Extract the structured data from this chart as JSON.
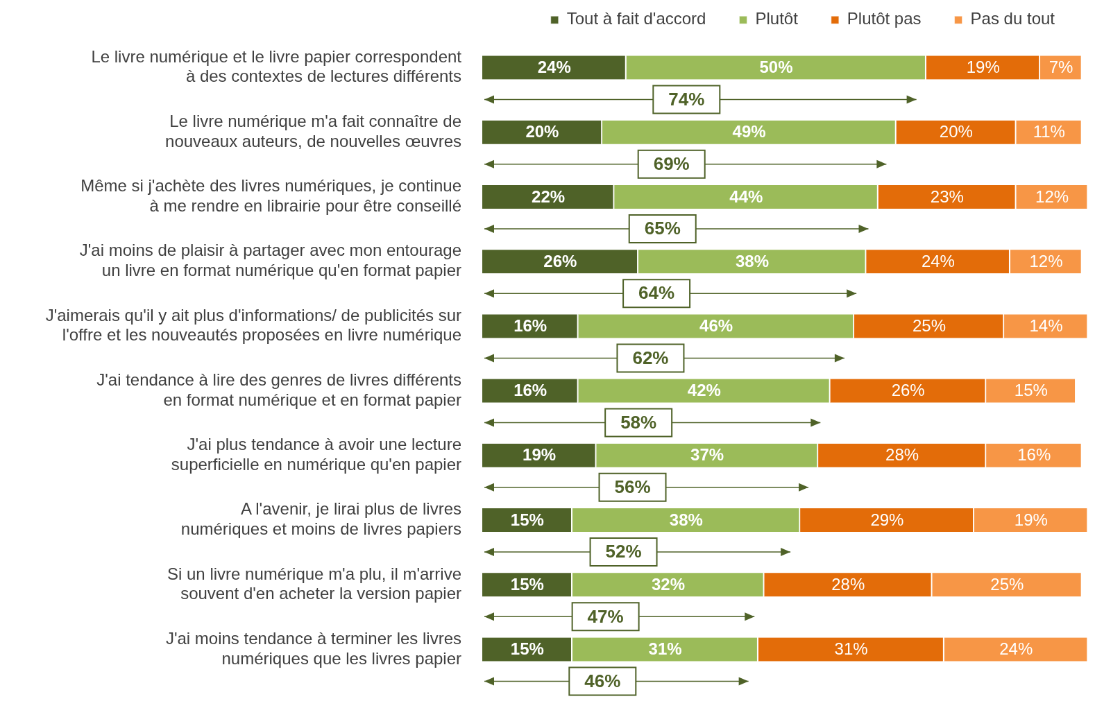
{
  "chart_data": {
    "type": "bar",
    "orientation": "horizontal",
    "stacked": true,
    "legend": "top",
    "tick_labels": "y",
    "grid": false,
    "categories": [
      "Le livre numérique et le livre papier correspondent à des contextes de lectures différents",
      "Le livre numérique m'a fait connaître de nouveaux auteurs, de nouvelles œuvres",
      "Même si j'achète des livres numériques, je continue à me rendre en librairie pour être conseillé",
      "J'ai moins de plaisir à partager avec mon entourage un livre en format numérique qu'en format papier",
      "J'aimerais qu'il y ait plus d'informations/ de publicités sur l'offre et les nouveautés proposées en livre numérique",
      "J'ai tendance à lire des genres de livres différents en format numérique et en format papier",
      "J'ai plus tendance à avoir une lecture superficielle en numérique qu'en papier",
      "A l'avenir, je lirai plus de livres numériques et moins de livres papiers",
      "Si un livre numérique m'a plu, il m'arrive souvent d'en acheter la version papier",
      "J'ai moins tendance à terminer les livres numériques que les livres papier"
    ],
    "series": [
      {
        "name": "Tout à fait d'accord",
        "color": "#4f6228",
        "values": [
          24,
          20,
          22,
          26,
          16,
          16,
          19,
          15,
          15,
          15
        ],
        "value_labels": [
          "24%",
          "20%",
          "22%",
          "26%",
          "16%",
          "16%",
          "19%",
          "15%",
          "15%",
          "15%"
        ]
      },
      {
        "name": "Plutôt",
        "color": "#9bbb59",
        "values": [
          50,
          49,
          44,
          38,
          46,
          42,
          37,
          38,
          32,
          31
        ],
        "value_labels": [
          "50%",
          "49%",
          "44%",
          "38%",
          "46%",
          "42%",
          "37%",
          "38%",
          "32%",
          "31%"
        ]
      },
      {
        "name": "Plutôt pas",
        "color": "#e36c09",
        "values": [
          19,
          20,
          23,
          24,
          25,
          26,
          28,
          29,
          28,
          31
        ],
        "value_labels": [
          "19%",
          "20%",
          "23%",
          "24%",
          "25%",
          "26%",
          "28%",
          "29%",
          "28%",
          "31%"
        ]
      },
      {
        "name": "Pas du tout",
        "color": "#f79646",
        "values": [
          7,
          11,
          12,
          12,
          14,
          15,
          16,
          19,
          25,
          24
        ],
        "value_labels": [
          "7%",
          "11%",
          "12%",
          "12%",
          "14%",
          "15%",
          "16%",
          "19%",
          "25%",
          "24%"
        ]
      }
    ],
    "annotations": [
      "74%",
      "69%",
      "65%",
      "64%",
      "62%",
      "58%",
      "56%",
      "52%",
      "47%",
      "46%"
    ]
  }
}
